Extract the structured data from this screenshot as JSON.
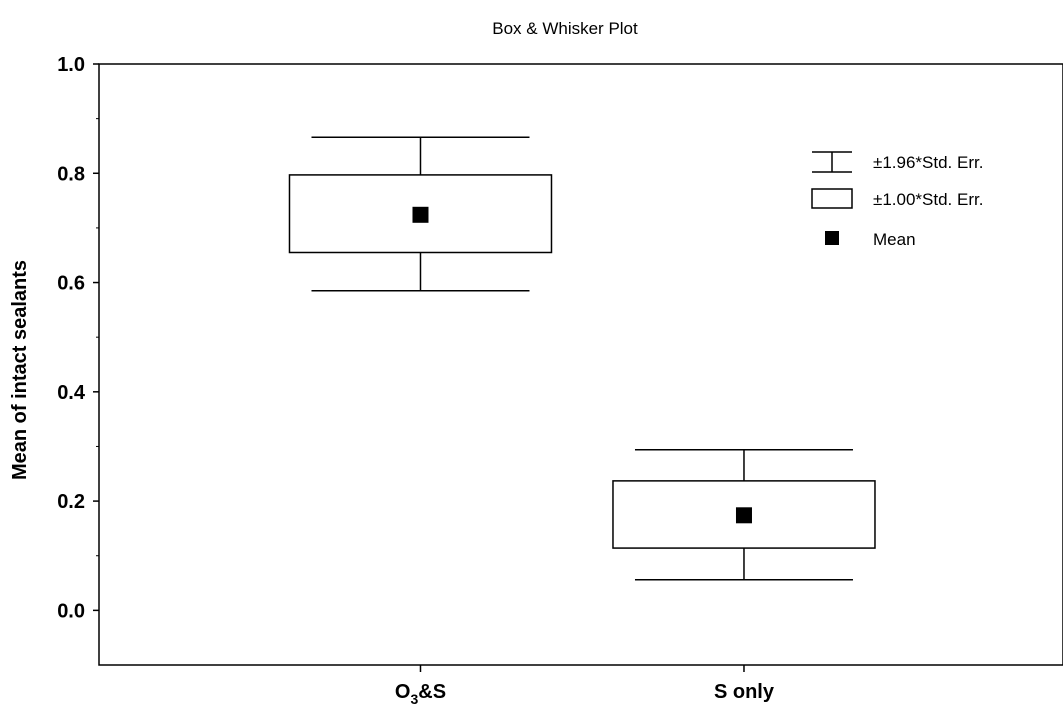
{
  "chart_data": {
    "type": "box",
    "title": "Box & Whisker Plot",
    "xlabel": "",
    "ylabel": "Mean of intact sealants",
    "ylim": [
      -0.1,
      1.0
    ],
    "yticks": [
      0.0,
      0.2,
      0.4,
      0.6,
      0.8,
      1.0
    ],
    "ytick_labels": [
      "0.0",
      "0.2",
      "0.4",
      "0.6",
      "0.8",
      "1.0"
    ],
    "categories": [
      {
        "label_main": "O",
        "label_sub": "3",
        "label_rest": "&S"
      },
      {
        "label_main": "S only",
        "label_sub": "",
        "label_rest": ""
      }
    ],
    "series": [
      {
        "category": "O3&S",
        "mean": 0.724,
        "se1_low": 0.655,
        "se1_high": 0.797,
        "se196_low": 0.585,
        "se196_high": 0.866
      },
      {
        "category": "S only",
        "mean": 0.174,
        "se1_low": 0.114,
        "se1_high": 0.237,
        "se196_low": 0.056,
        "se196_high": 0.294
      }
    ],
    "legend": {
      "placement": "top-right",
      "items": [
        {
          "symbol": "whisker",
          "label": "±1.96*Std. Err."
        },
        {
          "symbol": "box",
          "label": "±1.00*Std. Err."
        },
        {
          "symbol": "mean",
          "label": "Mean"
        }
      ]
    },
    "grid": false
  }
}
